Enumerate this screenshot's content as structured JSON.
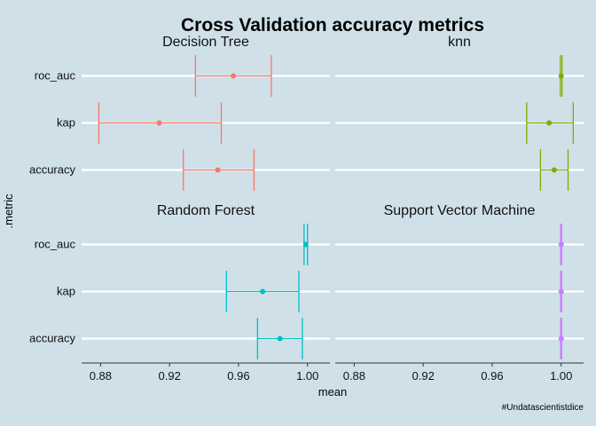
{
  "chart_data": {
    "type": "errorbar",
    "title": "Cross Validation accuracy metrics",
    "xlabel": "mean",
    "ylabel": ".metric",
    "caption": "#Undatascientistdice",
    "metrics": [
      "accuracy",
      "kap",
      "roc_auc"
    ],
    "xlim": [
      0.869,
      1.013
    ],
    "xticks": [
      {
        "value": 0.88,
        "label": "0.88"
      },
      {
        "value": 0.92,
        "label": "0.92"
      },
      {
        "value": 0.96,
        "label": "0.96"
      },
      {
        "value": 1.0,
        "label": "1.00"
      }
    ],
    "grid": "horizontal",
    "panels": [
      {
        "name": "Decision Tree",
        "color": "#f8766d",
        "points": [
          {
            "metric": "roc_auc",
            "mean": 0.957,
            "low": 0.935,
            "high": 0.979
          },
          {
            "metric": "kap",
            "mean": 0.914,
            "low": 0.879,
            "high": 0.95
          },
          {
            "metric": "accuracy",
            "mean": 0.948,
            "low": 0.928,
            "high": 0.969
          }
        ]
      },
      {
        "name": "knn",
        "color": "#7cae00",
        "points": [
          {
            "metric": "roc_auc",
            "mean": 1.0,
            "low": 0.9995,
            "high": 1.0005
          },
          {
            "metric": "kap",
            "mean": 0.993,
            "low": 0.98,
            "high": 1.007
          },
          {
            "metric": "accuracy",
            "mean": 0.996,
            "low": 0.988,
            "high": 1.004
          }
        ]
      },
      {
        "name": "Random Forest",
        "color": "#00bfc4",
        "points": [
          {
            "metric": "roc_auc",
            "mean": 0.999,
            "low": 0.998,
            "high": 1.0
          },
          {
            "metric": "kap",
            "mean": 0.974,
            "low": 0.953,
            "high": 0.995
          },
          {
            "metric": "accuracy",
            "mean": 0.984,
            "low": 0.971,
            "high": 0.997
          }
        ]
      },
      {
        "name": "Support Vector Machine",
        "color": "#c77cff",
        "points": [
          {
            "metric": "roc_auc",
            "mean": 1.0,
            "low": 0.9997,
            "high": 1.0003
          },
          {
            "metric": "kap",
            "mean": 1.0,
            "low": 0.9997,
            "high": 1.0003
          },
          {
            "metric": "accuracy",
            "mean": 1.0,
            "low": 0.9997,
            "high": 1.0003
          }
        ]
      }
    ]
  }
}
